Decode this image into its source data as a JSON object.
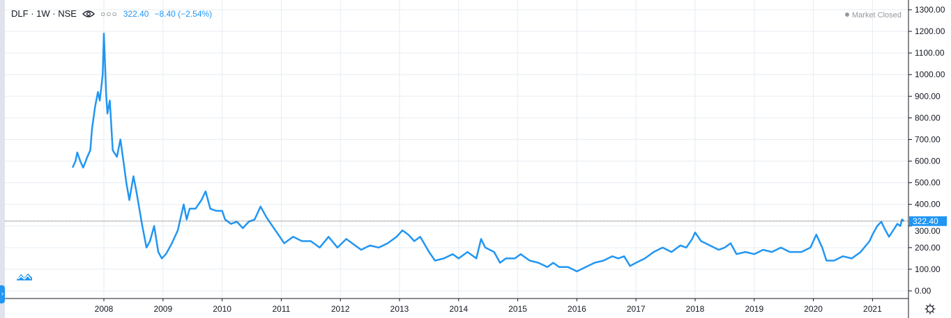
{
  "legend": {
    "symbol": "DLF",
    "interval": "1W",
    "exchange": "NSE",
    "separator": "·",
    "price": "322.40",
    "change": "−8.40 (−2.54%)"
  },
  "status": "Market Closed",
  "colors": {
    "line": "#2196f3",
    "grid": "#e6edf3",
    "axis": "#131722",
    "last_price_bg": "#2196f3"
  },
  "chart_data": {
    "type": "line",
    "title": "DLF · 1W · NSE",
    "xlabel": "",
    "ylabel": "",
    "ylim": [
      0,
      1300
    ],
    "xlim": [
      2006.4,
      2021.63
    ],
    "grid": true,
    "y_ticks": [
      0,
      100,
      200,
      300,
      400,
      500,
      600,
      700,
      800,
      900,
      1000,
      1100,
      1200,
      1300
    ],
    "y_tick_labels": [
      "0.00",
      "100.00",
      "200.00",
      "300.00",
      "400.00",
      "500.00",
      "600.00",
      "700.00",
      "800.00",
      "900.00",
      "1000.00",
      "1100.00",
      "1200.00",
      "1300.00"
    ],
    "x_ticks": [
      2008,
      2009,
      2010,
      2011,
      2012,
      2013,
      2014,
      2015,
      2016,
      2017,
      2018,
      2019,
      2020,
      2021
    ],
    "x_tick_labels": [
      "2008",
      "2009",
      "2010",
      "2011",
      "2012",
      "2013",
      "2014",
      "2015",
      "2016",
      "2017",
      "2018",
      "2019",
      "2020",
      "2021"
    ],
    "last_price": 322.4,
    "last_price_label": "322.40",
    "series": [
      {
        "name": "DLF",
        "points": [
          [
            2007.47,
            570
          ],
          [
            2007.52,
            600
          ],
          [
            2007.55,
            640
          ],
          [
            2007.6,
            600
          ],
          [
            2007.65,
            570
          ],
          [
            2007.72,
            620
          ],
          [
            2007.77,
            650
          ],
          [
            2007.8,
            750
          ],
          [
            2007.85,
            850
          ],
          [
            2007.9,
            920
          ],
          [
            2007.93,
            880
          ],
          [
            2007.96,
            950
          ],
          [
            2007.98,
            1000
          ],
          [
            2008.0,
            1190
          ],
          [
            2008.04,
            900
          ],
          [
            2008.06,
            820
          ],
          [
            2008.1,
            880
          ],
          [
            2008.15,
            650
          ],
          [
            2008.22,
            620
          ],
          [
            2008.28,
            700
          ],
          [
            2008.33,
            600
          ],
          [
            2008.38,
            500
          ],
          [
            2008.43,
            420
          ],
          [
            2008.5,
            530
          ],
          [
            2008.55,
            460
          ],
          [
            2008.65,
            300
          ],
          [
            2008.72,
            200
          ],
          [
            2008.78,
            230
          ],
          [
            2008.85,
            300
          ],
          [
            2008.92,
            180
          ],
          [
            2008.98,
            150
          ],
          [
            2009.05,
            170
          ],
          [
            2009.15,
            220
          ],
          [
            2009.25,
            280
          ],
          [
            2009.35,
            400
          ],
          [
            2009.4,
            330
          ],
          [
            2009.45,
            380
          ],
          [
            2009.55,
            380
          ],
          [
            2009.65,
            420
          ],
          [
            2009.72,
            460
          ],
          [
            2009.8,
            380
          ],
          [
            2009.9,
            370
          ],
          [
            2010.0,
            370
          ],
          [
            2010.05,
            330
          ],
          [
            2010.15,
            310
          ],
          [
            2010.25,
            320
          ],
          [
            2010.35,
            290
          ],
          [
            2010.45,
            320
          ],
          [
            2010.55,
            330
          ],
          [
            2010.65,
            390
          ],
          [
            2010.75,
            340
          ],
          [
            2010.85,
            300
          ],
          [
            2010.95,
            260
          ],
          [
            2011.05,
            220
          ],
          [
            2011.2,
            250
          ],
          [
            2011.35,
            230
          ],
          [
            2011.5,
            230
          ],
          [
            2011.65,
            200
          ],
          [
            2011.8,
            250
          ],
          [
            2011.95,
            200
          ],
          [
            2012.1,
            240
          ],
          [
            2012.2,
            220
          ],
          [
            2012.35,
            190
          ],
          [
            2012.5,
            210
          ],
          [
            2012.65,
            200
          ],
          [
            2012.8,
            220
          ],
          [
            2012.95,
            250
          ],
          [
            2013.05,
            280
          ],
          [
            2013.15,
            260
          ],
          [
            2013.25,
            230
          ],
          [
            2013.35,
            250
          ],
          [
            2013.5,
            180
          ],
          [
            2013.6,
            140
          ],
          [
            2013.75,
            150
          ],
          [
            2013.9,
            170
          ],
          [
            2014.0,
            150
          ],
          [
            2014.15,
            180
          ],
          [
            2014.3,
            150
          ],
          [
            2014.38,
            240
          ],
          [
            2014.45,
            200
          ],
          [
            2014.6,
            180
          ],
          [
            2014.7,
            130
          ],
          [
            2014.8,
            150
          ],
          [
            2014.95,
            150
          ],
          [
            2015.05,
            170
          ],
          [
            2015.2,
            140
          ],
          [
            2015.35,
            130
          ],
          [
            2015.5,
            110
          ],
          [
            2015.6,
            130
          ],
          [
            2015.7,
            110
          ],
          [
            2015.85,
            110
          ],
          [
            2016.0,
            90
          ],
          [
            2016.15,
            110
          ],
          [
            2016.3,
            130
          ],
          [
            2016.45,
            140
          ],
          [
            2016.6,
            160
          ],
          [
            2016.7,
            150
          ],
          [
            2016.8,
            160
          ],
          [
            2016.9,
            115
          ],
          [
            2017.0,
            130
          ],
          [
            2017.15,
            150
          ],
          [
            2017.3,
            180
          ],
          [
            2017.45,
            200
          ],
          [
            2017.6,
            180
          ],
          [
            2017.75,
            210
          ],
          [
            2017.85,
            200
          ],
          [
            2017.95,
            240
          ],
          [
            2018.0,
            270
          ],
          [
            2018.1,
            230
          ],
          [
            2018.25,
            210
          ],
          [
            2018.4,
            190
          ],
          [
            2018.5,
            200
          ],
          [
            2018.6,
            220
          ],
          [
            2018.7,
            170
          ],
          [
            2018.85,
            180
          ],
          [
            2019.0,
            170
          ],
          [
            2019.15,
            190
          ],
          [
            2019.3,
            180
          ],
          [
            2019.45,
            200
          ],
          [
            2019.6,
            180
          ],
          [
            2019.8,
            180
          ],
          [
            2019.95,
            200
          ],
          [
            2020.05,
            260
          ],
          [
            2020.15,
            200
          ],
          [
            2020.22,
            140
          ],
          [
            2020.35,
            140
          ],
          [
            2020.5,
            160
          ],
          [
            2020.65,
            150
          ],
          [
            2020.8,
            180
          ],
          [
            2020.95,
            230
          ],
          [
            2021.0,
            260
          ],
          [
            2021.08,
            300
          ],
          [
            2021.15,
            320
          ],
          [
            2021.2,
            290
          ],
          [
            2021.28,
            250
          ],
          [
            2021.35,
            280
          ],
          [
            2021.42,
            310
          ],
          [
            2021.47,
            300
          ],
          [
            2021.5,
            330
          ],
          [
            2021.53,
            322.4
          ]
        ]
      }
    ]
  }
}
